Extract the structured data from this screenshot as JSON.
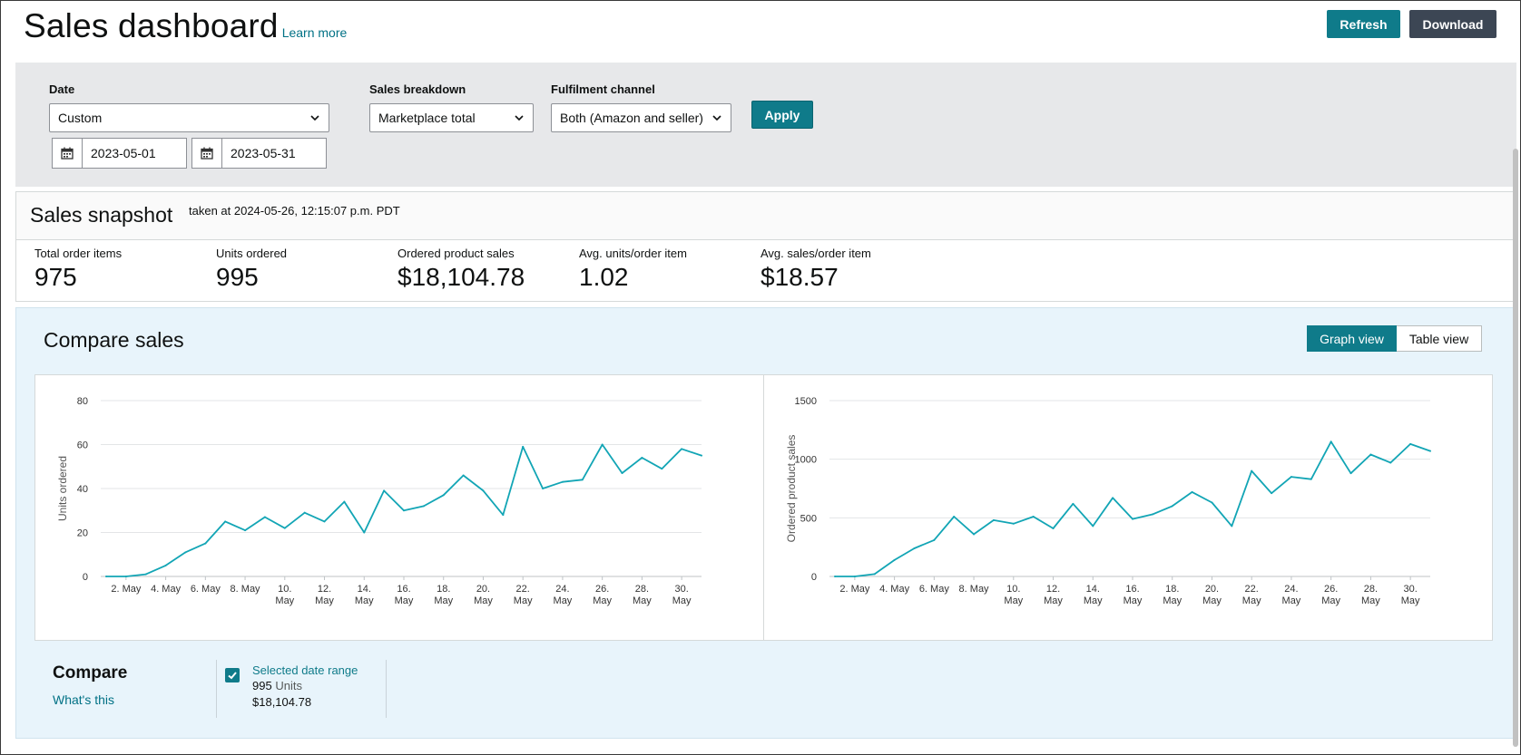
{
  "header": {
    "title": "Sales dashboard",
    "learn_more": "Learn more",
    "refresh_label": "Refresh",
    "download_label": "Download"
  },
  "filters": {
    "date_label": "Date",
    "date_value": "Custom",
    "start_date": "2023-05-01",
    "end_date": "2023-05-31",
    "breakdown_label": "Sales breakdown",
    "breakdown_value": "Marketplace total",
    "fulfilment_label": "Fulfilment channel",
    "fulfilment_value": "Both (Amazon and seller)",
    "apply_label": "Apply"
  },
  "snapshot": {
    "title": "Sales snapshot",
    "taken_at": "taken at 2024-05-26, 12:15:07 p.m. PDT",
    "metrics": [
      {
        "label": "Total order items",
        "value": "975"
      },
      {
        "label": "Units ordered",
        "value": "995"
      },
      {
        "label": "Ordered product sales",
        "value": "$18,104.78"
      },
      {
        "label": "Avg. units/order item",
        "value": "1.02"
      },
      {
        "label": "Avg. sales/order item",
        "value": "$18.57"
      }
    ]
  },
  "compare": {
    "title": "Compare sales",
    "graph_view": "Graph view",
    "table_view": "Table view",
    "compare_label": "Compare",
    "whats_this": "What's this",
    "selected_range": "Selected date range",
    "units_value": "995",
    "units_word": "Units",
    "sales_value": "$18,104.78"
  },
  "colors": {
    "teal": "#0f7b8a",
    "line": "#12a5b5",
    "dark_button": "#3c4654",
    "link": "#007185"
  },
  "chart_data": [
    {
      "type": "line",
      "ylabel": "Units ordered",
      "ylim": [
        0,
        80
      ],
      "yticks": [
        0,
        20,
        40,
        60,
        80
      ],
      "x": [
        "1. May",
        "2. May",
        "3. May",
        "4. May",
        "5. May",
        "6. May",
        "7. May",
        "8. May",
        "9. May",
        "10. May",
        "11. May",
        "12. May",
        "13. May",
        "14. May",
        "15. May",
        "16. May",
        "17. May",
        "18. May",
        "19. May",
        "20. May",
        "21. May",
        "22. May",
        "23. May",
        "24. May",
        "25. May",
        "26. May",
        "27. May",
        "28. May",
        "29. May",
        "30. May",
        "31. May"
      ],
      "xtick_labels": [
        [
          "2. May"
        ],
        [
          "4. May"
        ],
        [
          "6. May"
        ],
        [
          "8. May"
        ],
        [
          "10.",
          "May"
        ],
        [
          "12.",
          "May"
        ],
        [
          "14.",
          "May"
        ],
        [
          "16.",
          "May"
        ],
        [
          "18.",
          "May"
        ],
        [
          "20.",
          "May"
        ],
        [
          "22.",
          "May"
        ],
        [
          "24.",
          "May"
        ],
        [
          "26.",
          "May"
        ],
        [
          "28.",
          "May"
        ],
        [
          "30.",
          "May"
        ]
      ],
      "values": [
        0,
        0,
        1,
        5,
        11,
        15,
        25,
        21,
        27,
        22,
        29,
        25,
        34,
        20,
        39,
        30,
        32,
        37,
        46,
        39,
        28,
        59,
        40,
        43,
        44,
        60,
        47,
        54,
        49,
        58,
        55
      ],
      "grid": true
    },
    {
      "type": "line",
      "ylabel": "Ordered product sales",
      "ylim": [
        0,
        1500
      ],
      "yticks": [
        0,
        500,
        1000,
        1500
      ],
      "x": [
        "1. May",
        "2. May",
        "3. May",
        "4. May",
        "5. May",
        "6. May",
        "7. May",
        "8. May",
        "9. May",
        "10. May",
        "11. May",
        "12. May",
        "13. May",
        "14. May",
        "15. May",
        "16. May",
        "17. May",
        "18. May",
        "19. May",
        "20. May",
        "21. May",
        "22. May",
        "23. May",
        "24. May",
        "25. May",
        "26. May",
        "27. May",
        "28. May",
        "29. May",
        "30. May",
        "31. May"
      ],
      "xtick_labels": [
        [
          "2. May"
        ],
        [
          "4. May"
        ],
        [
          "6. May"
        ],
        [
          "8. May"
        ],
        [
          "10.",
          "May"
        ],
        [
          "12.",
          "May"
        ],
        [
          "14.",
          "May"
        ],
        [
          "16.",
          "May"
        ],
        [
          "18.",
          "May"
        ],
        [
          "20.",
          "May"
        ],
        [
          "22.",
          "May"
        ],
        [
          "24.",
          "May"
        ],
        [
          "26.",
          "May"
        ],
        [
          "28.",
          "May"
        ],
        [
          "30.",
          "May"
        ]
      ],
      "values": [
        0,
        0,
        20,
        140,
        240,
        310,
        510,
        360,
        480,
        450,
        510,
        410,
        620,
        430,
        670,
        490,
        530,
        600,
        720,
        630,
        430,
        900,
        710,
        850,
        830,
        1150,
        880,
        1040,
        970,
        1130,
        1070
      ],
      "grid": true
    }
  ]
}
